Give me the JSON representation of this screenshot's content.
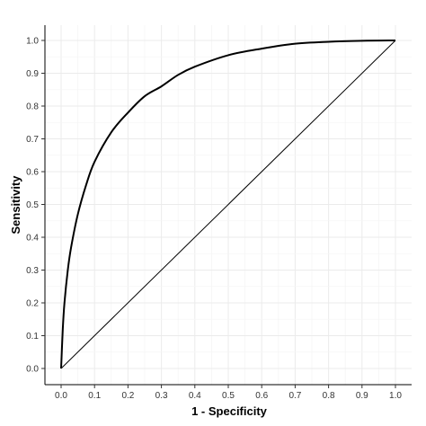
{
  "chart_data": {
    "type": "line",
    "xlabel": "1 - Specificity",
    "ylabel": "Sensitivity",
    "xlim": [
      0,
      1
    ],
    "ylim": [
      0,
      1
    ],
    "grid": true,
    "x_ticks": [
      "0.0",
      "0.1",
      "0.2",
      "0.3",
      "0.4",
      "0.5",
      "0.6",
      "0.7",
      "0.8",
      "0.9",
      "1.0"
    ],
    "y_ticks": [
      "0.0",
      "0.1",
      "0.2",
      "0.3",
      "0.4",
      "0.5",
      "0.6",
      "0.7",
      "0.8",
      "0.9",
      "1.0"
    ],
    "series": [
      {
        "values": [
          [
            0.0,
            0.0
          ],
          [
            0.005,
            0.12
          ],
          [
            0.01,
            0.2
          ],
          [
            0.02,
            0.3
          ],
          [
            0.03,
            0.37
          ],
          [
            0.05,
            0.47
          ],
          [
            0.075,
            0.56
          ],
          [
            0.1,
            0.63
          ],
          [
            0.15,
            0.72
          ],
          [
            0.2,
            0.78
          ],
          [
            0.25,
            0.83
          ],
          [
            0.3,
            0.86
          ],
          [
            0.35,
            0.895
          ],
          [
            0.4,
            0.92
          ],
          [
            0.5,
            0.955
          ],
          [
            0.6,
            0.975
          ],
          [
            0.7,
            0.99
          ],
          [
            0.8,
            0.996
          ],
          [
            0.9,
            0.999
          ],
          [
            1.0,
            1.0
          ]
        ]
      },
      {
        "values": [
          [
            0.0,
            0.0
          ],
          [
            1.0,
            1.0
          ]
        ]
      }
    ],
    "colors": {
      "curve": "#000000",
      "reference": "#000000",
      "grid": "#ebebeb",
      "axis": "#000000"
    }
  }
}
